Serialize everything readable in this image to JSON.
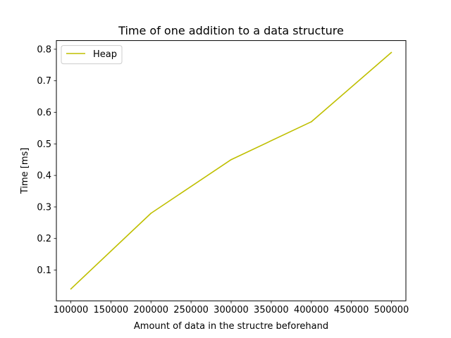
{
  "chart_data": {
    "type": "line",
    "title": "Time of one addition to a data structure",
    "xlabel": "Amount of data in the structre beforehand",
    "ylabel": "Time [ms]",
    "x": [
      100000,
      200000,
      300000,
      400000,
      500000
    ],
    "series": [
      {
        "name": "Heap",
        "color": "#bfbf00",
        "values": [
          0.04,
          0.28,
          0.45,
          0.57,
          0.79
        ]
      }
    ],
    "xlim": [
      82000,
      518000
    ],
    "ylim": [
      0.0025,
      0.8275
    ],
    "x_ticks": [
      100000,
      150000,
      200000,
      250000,
      300000,
      350000,
      400000,
      450000,
      500000
    ],
    "x_tick_labels": [
      "100000",
      "150000",
      "200000",
      "250000",
      "300000",
      "350000",
      "400000",
      "450000",
      "500000"
    ],
    "y_ticks": [
      0.1,
      0.2,
      0.3,
      0.4,
      0.5,
      0.6,
      0.7,
      0.8
    ],
    "y_tick_labels": [
      "0.1",
      "0.2",
      "0.3",
      "0.4",
      "0.5",
      "0.6",
      "0.7",
      "0.8"
    ],
    "grid": false,
    "legend_position": "top-left"
  }
}
